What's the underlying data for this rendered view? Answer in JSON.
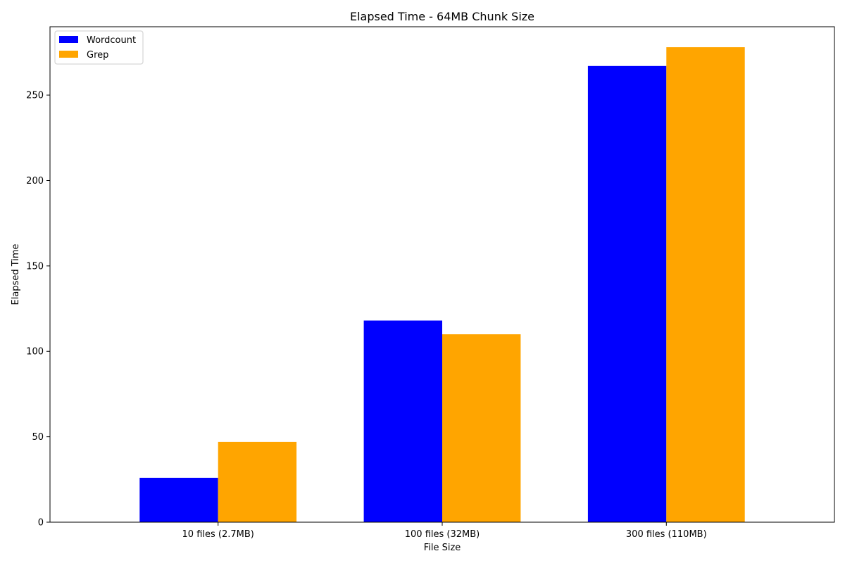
{
  "chart_data": {
    "type": "bar",
    "title": "Elapsed Time - 64MB Chunk Size",
    "xlabel": "File Size",
    "ylabel": "Elapsed Time",
    "categories": [
      "10 files (2.7MB)",
      "100 files (32MB)",
      "300 files (110MB)"
    ],
    "series": [
      {
        "name": "Wordcount",
        "color": "#0000ff",
        "values": [
          26,
          118,
          267
        ]
      },
      {
        "name": "Grep",
        "color": "#ffa500",
        "values": [
          47,
          110,
          278
        ]
      }
    ],
    "ylim": [
      0,
      290
    ],
    "yticks": [
      0,
      50,
      100,
      150,
      200,
      250
    ],
    "grid": false,
    "legend": "top-left"
  }
}
